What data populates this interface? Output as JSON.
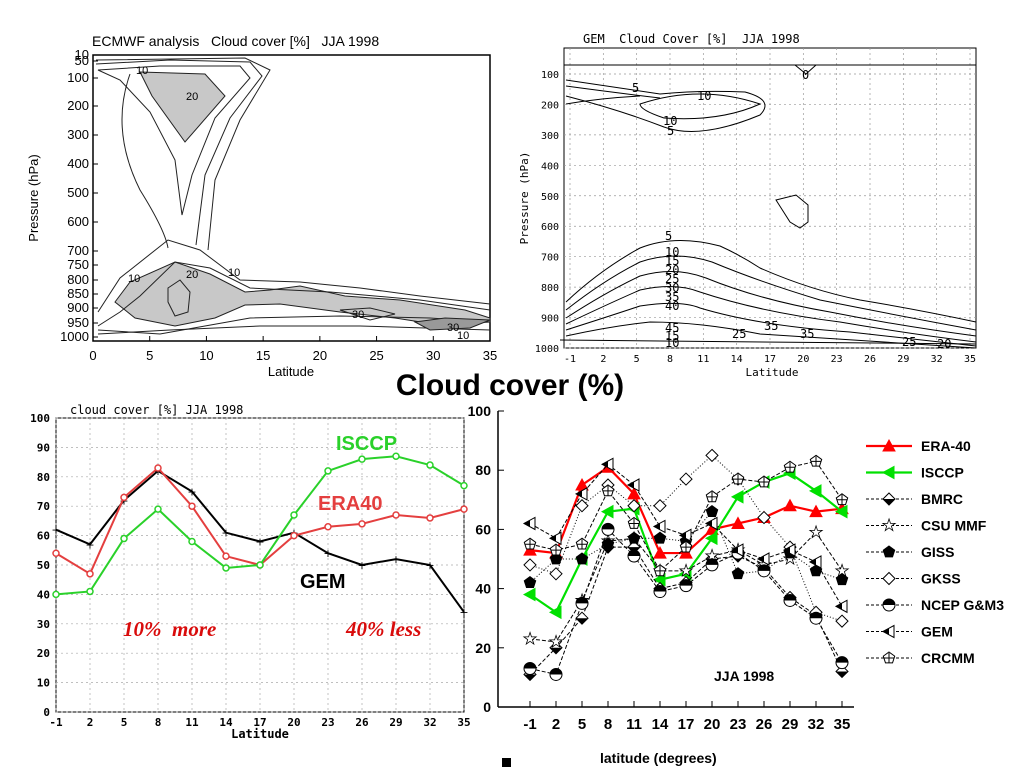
{
  "main_title": "Cloud cover (%)",
  "chart_data": [
    {
      "type": "contour",
      "title": "ECMWF analysis   Cloud cover [%]   JJA 1998",
      "xlabel": "Latitude",
      "ylabel": "Pressure (hPa)",
      "xlim": [
        0,
        35
      ],
      "xticks": [
        "0",
        "5",
        "10",
        "15",
        "20",
        "25",
        "30",
        "35"
      ],
      "yticks": [
        "10",
        "50",
        "100",
        "200",
        "300",
        "400",
        "500",
        "600",
        "700",
        "750",
        "800",
        "850",
        "900",
        "950",
        "1000"
      ],
      "contour_labels": [
        "10",
        "20",
        "20",
        "10",
        "10",
        "30",
        "30",
        "10"
      ],
      "shaded_levels": "20 and above"
    },
    {
      "type": "contour",
      "title": "GEM  Cloud Cover [%]  JJA 1998",
      "xlabel": "Latitude",
      "ylabel": "Pressure (hPa)",
      "xticks": [
        "-1",
        "2",
        "5",
        "8",
        "11",
        "14",
        "17",
        "20",
        "23",
        "26",
        "29",
        "32",
        "35"
      ],
      "yticks": [
        "100",
        "200",
        "300",
        "400",
        "500",
        "600",
        "700",
        "800",
        "900",
        "1000"
      ],
      "contour_labels": [
        "0",
        "5",
        "10",
        "10",
        "5",
        "5",
        "10",
        "15",
        "20",
        "25",
        "30",
        "35",
        "40",
        "45",
        "25",
        "35",
        "35",
        "25",
        "20",
        "15",
        "10"
      ]
    },
    {
      "type": "line",
      "title": "cloud cover [%] JJA 1998",
      "xlabel": "Latitude",
      "x": [
        -1,
        2,
        5,
        8,
        11,
        14,
        17,
        20,
        23,
        26,
        29,
        32,
        35
      ],
      "ylim": [
        0,
        100
      ],
      "yticks": [
        "0",
        "10",
        "20",
        "30",
        "40",
        "50",
        "60",
        "70",
        "80",
        "90",
        "100"
      ],
      "series": [
        {
          "name": "GEM",
          "color": "#000000",
          "values": [
            62,
            57,
            72,
            82,
            75,
            61,
            58,
            61,
            54,
            50,
            52,
            50,
            34
          ]
        },
        {
          "name": "ERA40",
          "color": "#e43f3f",
          "values": [
            54,
            47,
            73,
            83,
            70,
            53,
            50,
            60,
            63,
            64,
            67,
            66,
            69
          ]
        },
        {
          "name": "ISCCP",
          "color": "#2ad12a",
          "values": [
            40,
            41,
            59,
            69,
            58,
            49,
            50,
            67,
            82,
            86,
            87,
            84,
            77
          ]
        }
      ],
      "annotations": [
        "10%  more",
        "40% less"
      ],
      "annotation_color": "#d90b0b"
    },
    {
      "type": "line",
      "xlabel": "latitude (degrees)",
      "categories": [
        "-1",
        "2",
        "5",
        "8",
        "11",
        "14",
        "17",
        "20",
        "23",
        "26",
        "29",
        "32",
        "35"
      ],
      "ylim": [
        0,
        100
      ],
      "yticks": [
        "0",
        "20",
        "40",
        "60",
        "80",
        "100"
      ],
      "annotation": "JJA 1998",
      "legend_position": "right",
      "series": [
        {
          "name": "ERA-40",
          "color": "#ff0000",
          "marker": "triangle-up",
          "values": [
            53,
            52,
            75,
            81,
            72,
            52,
            52,
            60,
            62,
            64,
            68,
            66,
            67
          ]
        },
        {
          "name": "ISCCP",
          "color": "#00e000",
          "marker": "triangle-left",
          "values": [
            38,
            32,
            50,
            66,
            67,
            43,
            45,
            57,
            71,
            76,
            79,
            73,
            66
          ]
        },
        {
          "name": "BMRC",
          "color": "#000000",
          "marker": "diamond-half",
          "values": [
            11,
            20,
            30,
            54,
            54,
            40,
            42,
            50,
            51,
            47,
            37,
            31,
            12
          ]
        },
        {
          "name": "CSU MMF",
          "color": "#000000",
          "marker": "star",
          "values": [
            23,
            22,
            36,
            56,
            57,
            46,
            46,
            51,
            53,
            48,
            50,
            59,
            46
          ]
        },
        {
          "name": "GISS",
          "color": "#000000",
          "marker": "pentagon",
          "values": [
            42,
            50,
            50,
            55,
            57,
            57,
            56,
            66,
            45,
            46,
            52,
            46,
            43
          ]
        },
        {
          "name": "GKSS",
          "color": "#000000",
          "marker": "diamond",
          "values": [
            48,
            45,
            68,
            75,
            68,
            68,
            77,
            85,
            77,
            64,
            54,
            32,
            29
          ]
        },
        {
          "name": "NCEP G&M3",
          "color": "#000000",
          "marker": "circle-half",
          "values": [
            13,
            11,
            35,
            60,
            51,
            39,
            41,
            48,
            52,
            46,
            36,
            30,
            15
          ]
        },
        {
          "name": "GEM",
          "color": "#000000",
          "marker": "triangle-left-half",
          "values": [
            62,
            57,
            72,
            82,
            75,
            61,
            58,
            62,
            53,
            50,
            53,
            49,
            34
          ]
        },
        {
          "name": "CRCMM",
          "color": "#000000",
          "marker": "pentagon-cross",
          "values": [
            55,
            53,
            55,
            73,
            62,
            46,
            54,
            71,
            77,
            76,
            81,
            83,
            70
          ]
        }
      ]
    }
  ]
}
